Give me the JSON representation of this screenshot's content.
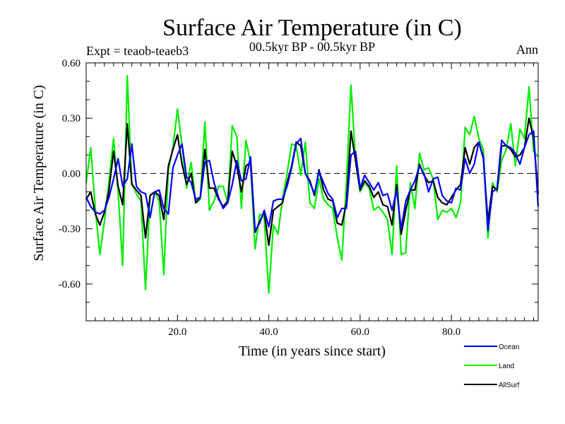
{
  "chart_data": {
    "type": "line",
    "title": "Surface Air Temperature (in C)",
    "subtitle_left": "Expt = teaob-teaeb3",
    "subtitle_center": "00.5kyr BP - 00.5kyr BP",
    "subtitle_right": "Ann",
    "xlabel": "Time (in years since start)",
    "ylabel": "Surface Air Temperature (in C)",
    "xlim": [
      0,
      99
    ],
    "ylim": [
      -0.8,
      0.6
    ],
    "x_ticks": [
      20,
      40,
      60,
      80
    ],
    "x_tick_labels": [
      "20.0",
      "40.0",
      "60.0",
      "80.0"
    ],
    "y_ticks": [
      0.6,
      0.3,
      0.0,
      -0.3,
      -0.6
    ],
    "y_tick_labels": [
      "0.60",
      "0.30",
      "0.00",
      "-0.30",
      "-0.60"
    ],
    "zero_line": true,
    "x": [
      0,
      1,
      2,
      3,
      4,
      5,
      6,
      7,
      8,
      9,
      10,
      11,
      12,
      13,
      14,
      15,
      16,
      17,
      18,
      19,
      20,
      21,
      22,
      23,
      24,
      25,
      26,
      27,
      28,
      29,
      30,
      31,
      32,
      33,
      34,
      35,
      36,
      37,
      38,
      39,
      40,
      41,
      42,
      43,
      44,
      45,
      46,
      47,
      48,
      49,
      50,
      51,
      52,
      53,
      54,
      55,
      56,
      57,
      58,
      59,
      60,
      61,
      62,
      63,
      64,
      65,
      66,
      67,
      68,
      69,
      70,
      71,
      72,
      73,
      74,
      75,
      76,
      77,
      78,
      79,
      80,
      81,
      82,
      83,
      84,
      85,
      86,
      87,
      88,
      89,
      90,
      91,
      92,
      93,
      94,
      95,
      96,
      97,
      98,
      99
    ],
    "series": [
      {
        "name": "Ocean",
        "color": "#0000ff",
        "values": [
          -0.13,
          -0.18,
          -0.21,
          -0.22,
          -0.2,
          -0.13,
          -0.03,
          0.08,
          -0.07,
          -0.03,
          0.16,
          -0.07,
          -0.1,
          -0.11,
          -0.24,
          -0.1,
          -0.09,
          -0.19,
          -0.22,
          0.03,
          0.1,
          0.16,
          -0.02,
          -0.05,
          -0.14,
          -0.13,
          0.06,
          0.07,
          -0.05,
          -0.13,
          -0.19,
          -0.16,
          -0.06,
          0.07,
          -0.04,
          -0.03,
          0.09,
          -0.31,
          -0.27,
          -0.2,
          -0.29,
          -0.15,
          -0.14,
          -0.14,
          -0.07,
          0.03,
          0.16,
          0.19,
          0.0,
          -0.05,
          -0.11,
          0.01,
          -0.05,
          -0.11,
          -0.14,
          -0.24,
          -0.19,
          -0.19,
          0.1,
          0.12,
          -0.08,
          -0.01,
          -0.05,
          -0.09,
          -0.05,
          -0.12,
          -0.11,
          -0.2,
          -0.09,
          -0.3,
          -0.15,
          -0.09,
          -0.04,
          0.04,
          0.0,
          -0.1,
          -0.03,
          -0.02,
          -0.12,
          -0.15,
          -0.16,
          -0.08,
          -0.09,
          0.08,
          0.0,
          0.05,
          0.17,
          0.09,
          -0.31,
          -0.1,
          -0.08,
          0.18,
          0.15,
          0.14,
          0.11,
          0.05,
          0.14,
          0.21,
          0.23,
          -0.18
        ]
      },
      {
        "name": "Land",
        "color": "#00ee00",
        "values": [
          -0.05,
          0.14,
          -0.19,
          -0.44,
          -0.26,
          -0.04,
          0.19,
          -0.1,
          -0.5,
          0.53,
          -0.05,
          -0.11,
          -0.15,
          -0.63,
          -0.12,
          -0.1,
          -0.15,
          -0.55,
          0.02,
          0.14,
          0.35,
          0.15,
          -0.08,
          0.06,
          -0.16,
          -0.14,
          0.28,
          -0.2,
          -0.15,
          -0.07,
          -0.07,
          -0.16,
          0.26,
          0.2,
          -0.19,
          0.18,
          0.06,
          -0.41,
          -0.22,
          -0.24,
          -0.65,
          -0.28,
          -0.33,
          -0.14,
          0.0,
          0.16,
          0.15,
          -0.01,
          0.17,
          -0.16,
          -0.19,
          -0.03,
          -0.14,
          -0.17,
          -0.19,
          -0.35,
          -0.47,
          -0.05,
          0.48,
          0.07,
          -0.1,
          -0.05,
          -0.08,
          -0.2,
          -0.18,
          -0.21,
          -0.25,
          -0.44,
          0.04,
          -0.44,
          -0.43,
          -0.05,
          -0.19,
          0.11,
          0.02,
          0.03,
          -0.03,
          -0.25,
          -0.2,
          -0.21,
          -0.19,
          -0.24,
          -0.16,
          0.25,
          0.21,
          0.31,
          0.19,
          0.13,
          -0.35,
          -0.05,
          -0.1,
          0.07,
          0.13,
          0.27,
          0.04,
          0.24,
          0.19,
          0.47,
          0.12,
          0.09
        ]
      },
      {
        "name": "AllSurf",
        "color": "#000000",
        "values": [
          -0.14,
          -0.1,
          -0.22,
          -0.28,
          -0.21,
          -0.09,
          0.12,
          -0.07,
          -0.17,
          0.27,
          -0.06,
          -0.09,
          -0.12,
          -0.35,
          -0.12,
          -0.1,
          -0.12,
          -0.25,
          0.04,
          0.13,
          0.21,
          0.05,
          -0.06,
          0.0,
          -0.16,
          -0.13,
          0.13,
          -0.08,
          -0.08,
          -0.14,
          -0.18,
          -0.15,
          0.12,
          0.04,
          -0.1,
          0.04,
          0.06,
          -0.32,
          -0.26,
          -0.21,
          -0.39,
          -0.2,
          -0.18,
          -0.16,
          -0.05,
          0.04,
          0.17,
          0.15,
          0.0,
          -0.04,
          -0.12,
          0.02,
          -0.09,
          -0.14,
          -0.15,
          -0.27,
          -0.28,
          -0.16,
          0.23,
          0.07,
          -0.09,
          -0.04,
          -0.07,
          -0.13,
          -0.1,
          -0.17,
          -0.18,
          -0.28,
          -0.06,
          -0.33,
          -0.2,
          -0.09,
          -0.09,
          0.05,
          -0.01,
          -0.05,
          -0.04,
          -0.13,
          -0.16,
          -0.17,
          -0.13,
          -0.09,
          -0.06,
          0.14,
          0.05,
          0.14,
          0.17,
          0.08,
          -0.26,
          -0.07,
          -0.09,
          0.15,
          0.15,
          0.13,
          0.09,
          0.1,
          0.14,
          0.3,
          0.19,
          -0.11
        ]
      }
    ],
    "legend_position": "bottom-right"
  }
}
